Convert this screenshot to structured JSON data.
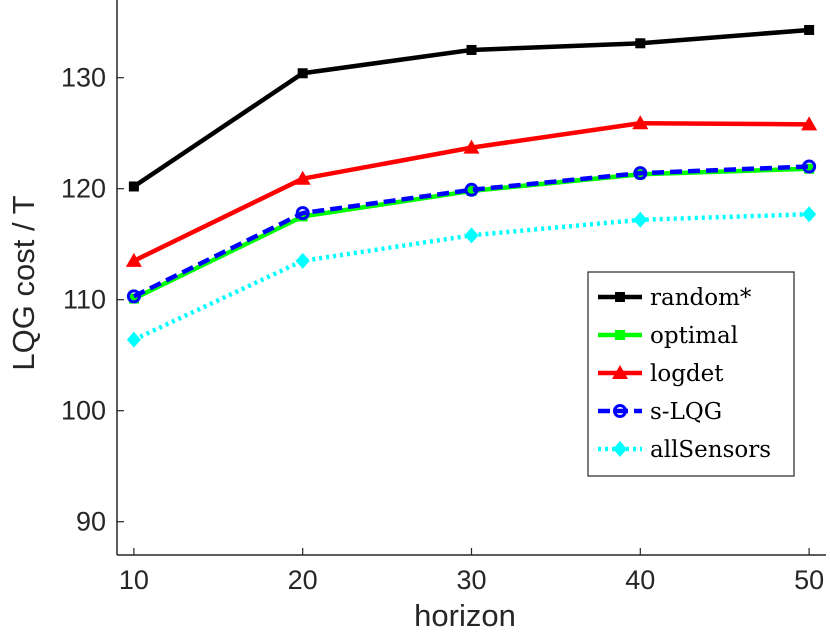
{
  "chart_data": {
    "type": "line",
    "xlabel": "horizon",
    "ylabel": "LQG cost / T",
    "x": [
      10,
      20,
      30,
      40,
      50
    ],
    "xlim": [
      9,
      51
    ],
    "ylim": [
      87,
      137
    ],
    "xticks": [
      10,
      20,
      30,
      40,
      50
    ],
    "yticks": [
      90,
      100,
      110,
      120,
      130
    ],
    "grid": false,
    "legend_position": "right",
    "series": [
      {
        "name": "random*",
        "values": [
          120.2,
          130.4,
          132.5,
          133.1,
          134.3
        ],
        "color": "#000000",
        "marker": "square",
        "dash": "solid"
      },
      {
        "name": "optimal",
        "values": [
          110.1,
          117.5,
          119.8,
          121.3,
          121.8
        ],
        "color": "#00ff00",
        "marker": "square",
        "dash": "solid"
      },
      {
        "name": "logdet",
        "values": [
          113.5,
          120.9,
          123.7,
          125.9,
          125.8
        ],
        "color": "#ff0000",
        "marker": "triangle",
        "dash": "solid"
      },
      {
        "name": "s-LQG",
        "values": [
          110.3,
          117.8,
          119.9,
          121.4,
          122.0
        ],
        "color": "#0000ff",
        "marker": "circle",
        "dash": "dashed"
      },
      {
        "name": "allSensors",
        "values": [
          106.4,
          113.5,
          115.8,
          117.2,
          117.7
        ],
        "color": "#00ffff",
        "marker": "diamond",
        "dash": "dotted"
      }
    ]
  }
}
